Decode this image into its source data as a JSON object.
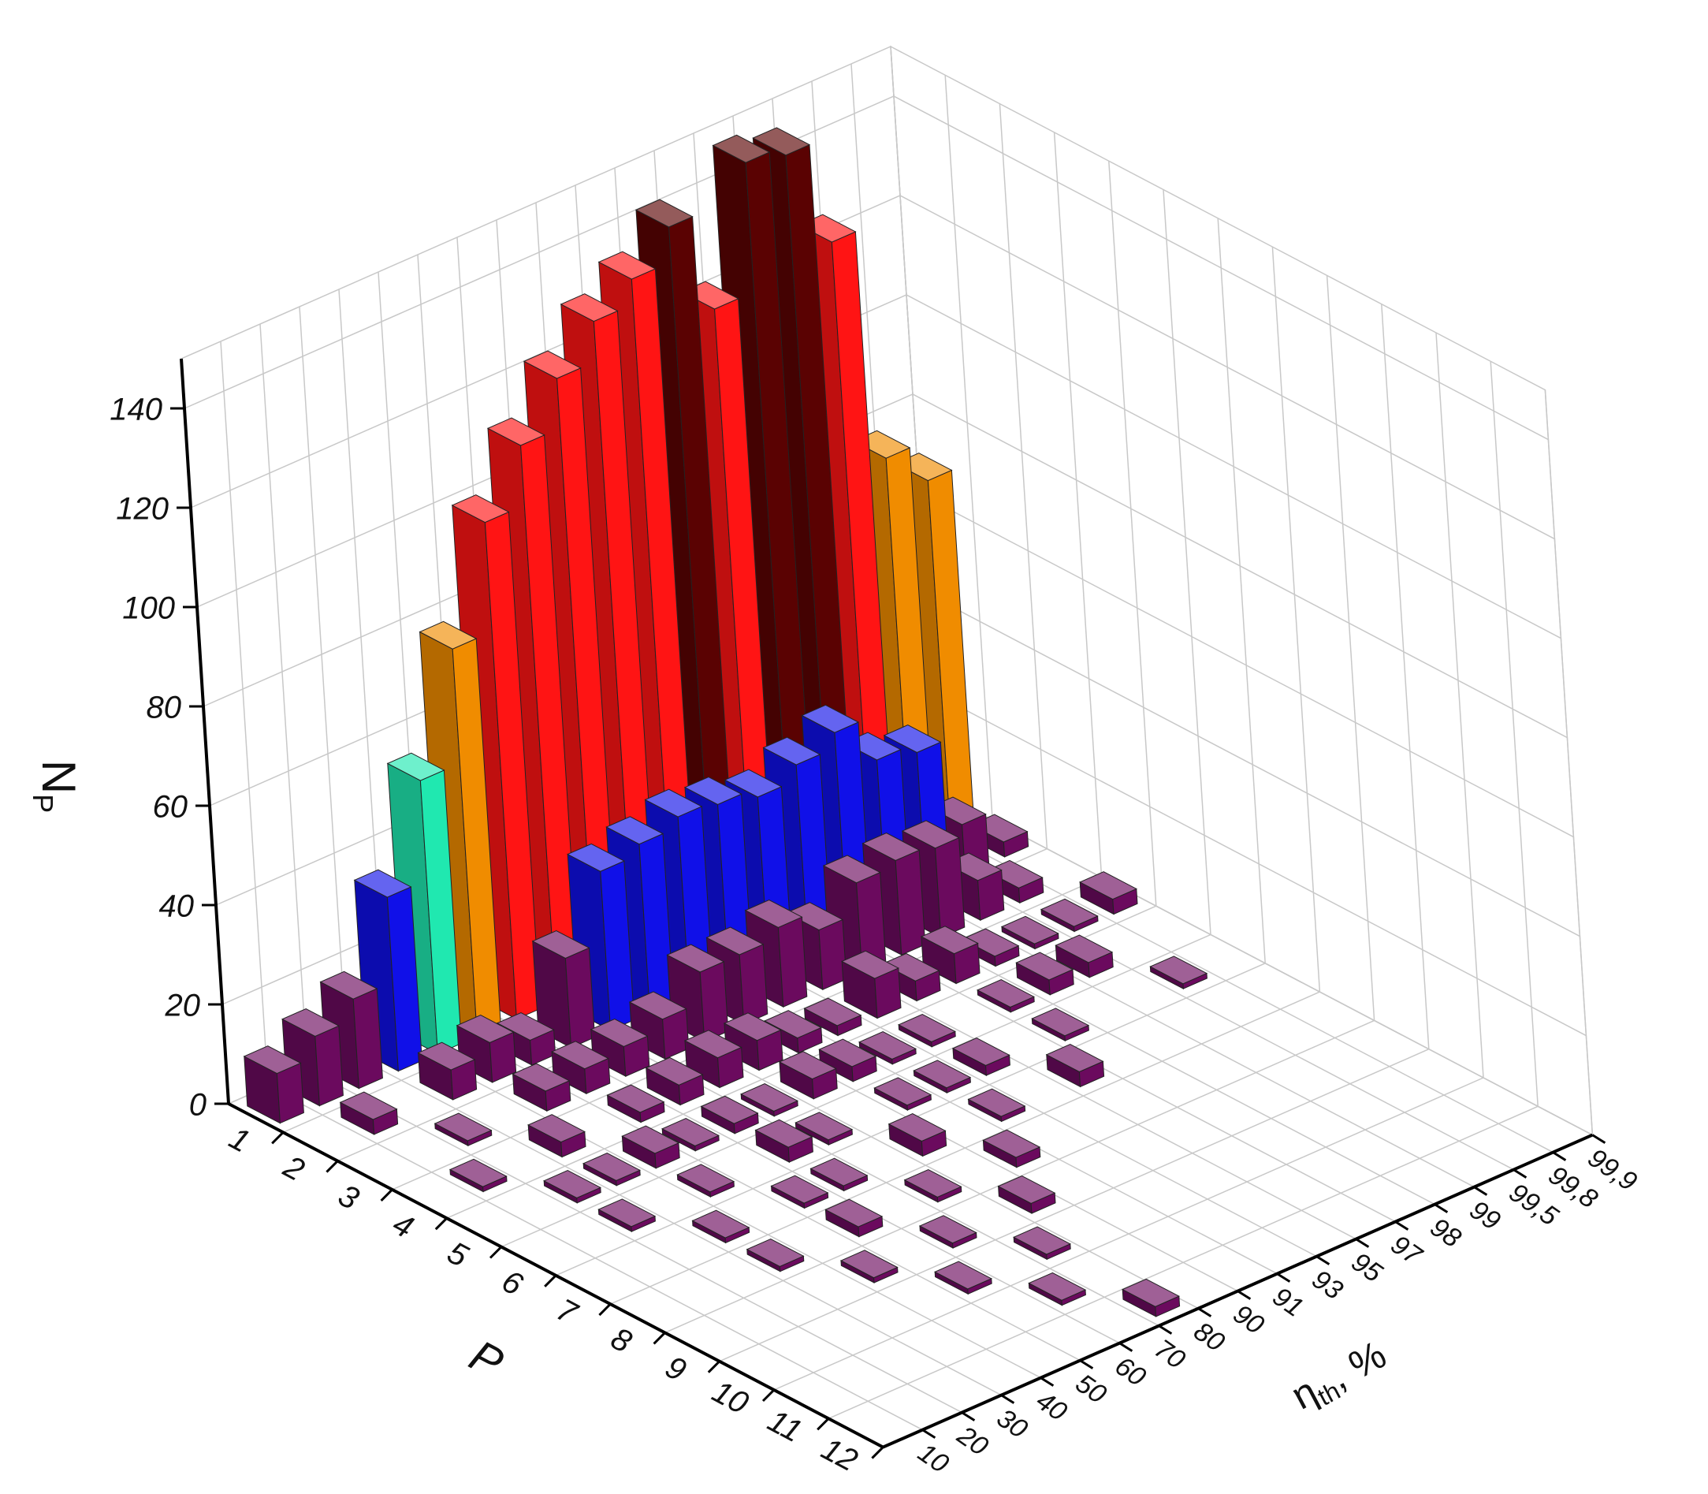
{
  "chart_data": {
    "type": "bar3d",
    "x_label": "P",
    "y_label": "η",
    "y_label_sub": "th",
    "y_label_suffix": ", %",
    "z_label": "N",
    "z_label_sub": "P",
    "x_categories": [
      "1",
      "2",
      "3",
      "4",
      "5",
      "6",
      "7",
      "8",
      "9",
      "10",
      "11",
      "12"
    ],
    "y_categories": [
      "10",
      "20",
      "30",
      "40",
      "50",
      "60",
      "70",
      "80",
      "90",
      "91",
      "93",
      "95",
      "97",
      "98",
      "99",
      "99,5",
      "99,8",
      "99,9"
    ],
    "values": [
      [
        10,
        14,
        18,
        35,
        55,
        78,
        100,
        112,
        122,
        130,
        135,
        142,
        122,
        148,
        146,
        125,
        78,
        70
      ],
      [
        null,
        3,
        null,
        6,
        8,
        5,
        18,
        32,
        34,
        36,
        35,
        33,
        36,
        39,
        30,
        28,
        10,
        3
      ],
      [
        null,
        null,
        1,
        null,
        4,
        5,
        6,
        8,
        14,
        14,
        16,
        12,
        18,
        19,
        18,
        8,
        3,
        null
      ],
      [
        null,
        1,
        null,
        3,
        null,
        2,
        4,
        6,
        6,
        3,
        2,
        8,
        4,
        6,
        2,
        1,
        1,
        3
      ],
      [
        null,
        null,
        1,
        1,
        3,
        1,
        2,
        1,
        4,
        3,
        1,
        1,
        null,
        1,
        3,
        3,
        null,
        null
      ],
      [
        null,
        null,
        1,
        null,
        1,
        null,
        3,
        1,
        null,
        1,
        1,
        2,
        null,
        1,
        null,
        null,
        1,
        null
      ],
      [
        null,
        null,
        null,
        1,
        null,
        1,
        1,
        null,
        3,
        null,
        1,
        null,
        3,
        null,
        null,
        null,
        null,
        null
      ],
      [
        null,
        null,
        null,
        1,
        null,
        2,
        null,
        1,
        null,
        2,
        null,
        null,
        null,
        null,
        null,
        null,
        null,
        null
      ],
      [
        null,
        null,
        null,
        null,
        1,
        null,
        1,
        null,
        2,
        null,
        null,
        null,
        null,
        null,
        null,
        null,
        null,
        null
      ],
      [
        null,
        null,
        null,
        null,
        null,
        1,
        null,
        1,
        null,
        null,
        null,
        null,
        null,
        null,
        null,
        null,
        null,
        null
      ],
      [
        null,
        null,
        null,
        null,
        null,
        null,
        1,
        null,
        null,
        null,
        null,
        null,
        null,
        null,
        null,
        null,
        null,
        null
      ],
      [
        null,
        null,
        null,
        null,
        null,
        null,
        null,
        2,
        null,
        null,
        null,
        null,
        null,
        null,
        null,
        null,
        null,
        null
      ]
    ],
    "zlim": [
      0,
      150
    ],
    "zticks": [
      0,
      20,
      40,
      60,
      80,
      100,
      120,
      140
    ],
    "grid": true,
    "color_levels": [
      {
        "min": 0,
        "color": "#6b0a5e"
      },
      {
        "min": 20,
        "color": "#1010e8"
      },
      {
        "min": 40,
        "color": "#20e8b0"
      },
      {
        "min": 60,
        "color": "#f08c00"
      },
      {
        "min": 80,
        "color": "#ff1414"
      },
      {
        "min": 140,
        "color": "#5a0202"
      }
    ]
  }
}
